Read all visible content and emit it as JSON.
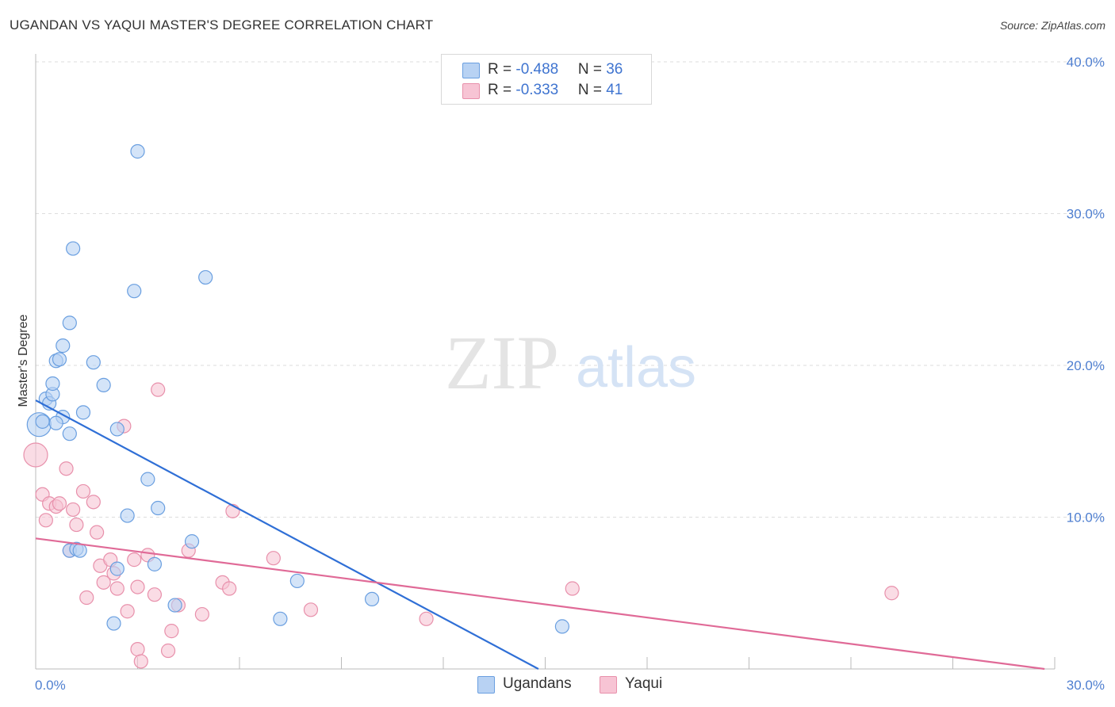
{
  "title": "UGANDAN VS YAQUI MASTER'S DEGREE CORRELATION CHART",
  "source": "Source: ZipAtlas.com",
  "watermark": {
    "zip": "ZIP",
    "atlas": "atlas"
  },
  "legend": {
    "rows": [
      {
        "r_label": "R = ",
        "r_value": "-0.488",
        "n_label": "N = ",
        "n_value": "36"
      },
      {
        "r_label": "R = ",
        "r_value": "-0.333",
        "n_label": "N = ",
        "n_value": "41"
      }
    ]
  },
  "series_labels": {
    "a": "Ugandans",
    "b": "Yaqui"
  },
  "colors": {
    "blue_fill": "#b8d2f3",
    "blue_stroke": "#6a9fe0",
    "blue_line": "#2f6fd6",
    "pink_fill": "#f7c4d4",
    "pink_stroke": "#e890ab",
    "pink_line": "#e06a97",
    "tick_text": "#4f7fd0",
    "grid": "#dddddd"
  },
  "chart_data": {
    "type": "scatter",
    "title": "UGANDAN VS YAQUI MASTER'S DEGREE CORRELATION CHART",
    "xlabel": "",
    "ylabel": "Master's Degree",
    "xlim": [
      0,
      30
    ],
    "ylim": [
      0,
      40
    ],
    "x_tick_labels": [
      "0.0%",
      "30.0%"
    ],
    "y_ticks": [
      10,
      20,
      30,
      40
    ],
    "y_tick_labels": [
      "10.0%",
      "20.0%",
      "30.0%",
      "40.0%"
    ],
    "grid": "horizontal-dashed",
    "legend_position": "top-center",
    "series": [
      {
        "name": "Ugandans",
        "color": "#6a9fe0",
        "r": -0.488,
        "n": 36,
        "trend": {
          "x": [
            0,
            14.8
          ],
          "y": [
            17.7,
            0
          ]
        },
        "points": [
          {
            "x": 0.1,
            "y": 16.1,
            "big": true
          },
          {
            "x": 0.2,
            "y": 16.3
          },
          {
            "x": 0.3,
            "y": 17.8
          },
          {
            "x": 0.4,
            "y": 17.5
          },
          {
            "x": 0.5,
            "y": 18.1
          },
          {
            "x": 0.5,
            "y": 18.8
          },
          {
            "x": 0.6,
            "y": 20.3
          },
          {
            "x": 0.7,
            "y": 20.4
          },
          {
            "x": 0.8,
            "y": 16.6
          },
          {
            "x": 0.8,
            "y": 21.3
          },
          {
            "x": 1.0,
            "y": 7.8
          },
          {
            "x": 1.0,
            "y": 15.5
          },
          {
            "x": 1.0,
            "y": 22.8
          },
          {
            "x": 1.1,
            "y": 27.7
          },
          {
            "x": 1.2,
            "y": 7.9
          },
          {
            "x": 1.3,
            "y": 7.8
          },
          {
            "x": 1.4,
            "y": 16.9
          },
          {
            "x": 1.7,
            "y": 20.2
          },
          {
            "x": 2.0,
            "y": 18.7
          },
          {
            "x": 2.3,
            "y": 3.0
          },
          {
            "x": 2.4,
            "y": 15.8
          },
          {
            "x": 2.4,
            "y": 6.6
          },
          {
            "x": 2.7,
            "y": 10.1
          },
          {
            "x": 2.9,
            "y": 24.9
          },
          {
            "x": 3.0,
            "y": 34.1
          },
          {
            "x": 3.3,
            "y": 12.5
          },
          {
            "x": 3.5,
            "y": 6.9
          },
          {
            "x": 3.6,
            "y": 10.6
          },
          {
            "x": 4.1,
            "y": 4.2
          },
          {
            "x": 4.6,
            "y": 8.4
          },
          {
            "x": 5.0,
            "y": 25.8
          },
          {
            "x": 7.2,
            "y": 3.3
          },
          {
            "x": 7.7,
            "y": 5.8
          },
          {
            "x": 9.9,
            "y": 4.6
          },
          {
            "x": 15.5,
            "y": 2.8
          },
          {
            "x": 0.6,
            "y": 16.2
          }
        ]
      },
      {
        "name": "Yaqui",
        "color": "#e890ab",
        "r": -0.333,
        "n": 41,
        "trend": {
          "x": [
            0,
            29.7
          ],
          "y": [
            8.6,
            0
          ]
        },
        "points": [
          {
            "x": 0.0,
            "y": 14.1,
            "big": true
          },
          {
            "x": 0.2,
            "y": 11.5
          },
          {
            "x": 0.3,
            "y": 9.8
          },
          {
            "x": 0.4,
            "y": 10.9
          },
          {
            "x": 0.6,
            "y": 10.7
          },
          {
            "x": 0.7,
            "y": 10.9
          },
          {
            "x": 0.9,
            "y": 13.2
          },
          {
            "x": 1.0,
            "y": 7.8
          },
          {
            "x": 1.1,
            "y": 10.5
          },
          {
            "x": 1.2,
            "y": 9.5
          },
          {
            "x": 1.4,
            "y": 11.7
          },
          {
            "x": 1.5,
            "y": 4.7
          },
          {
            "x": 1.7,
            "y": 11.0
          },
          {
            "x": 1.8,
            "y": 9.0
          },
          {
            "x": 1.9,
            "y": 6.8
          },
          {
            "x": 2.0,
            "y": 5.7
          },
          {
            "x": 2.2,
            "y": 7.2
          },
          {
            "x": 2.3,
            "y": 6.3
          },
          {
            "x": 2.4,
            "y": 5.3
          },
          {
            "x": 2.6,
            "y": 16.0
          },
          {
            "x": 2.7,
            "y": 3.8
          },
          {
            "x": 2.9,
            "y": 7.2
          },
          {
            "x": 3.0,
            "y": 1.3
          },
          {
            "x": 3.0,
            "y": 5.4
          },
          {
            "x": 3.1,
            "y": 0.5
          },
          {
            "x": 3.3,
            "y": 7.5
          },
          {
            "x": 3.5,
            "y": 4.9
          },
          {
            "x": 3.6,
            "y": 18.4
          },
          {
            "x": 3.9,
            "y": 1.2
          },
          {
            "x": 4.0,
            "y": 2.5
          },
          {
            "x": 4.2,
            "y": 4.2
          },
          {
            "x": 4.5,
            "y": 7.8
          },
          {
            "x": 4.9,
            "y": 3.6
          },
          {
            "x": 5.5,
            "y": 5.7
          },
          {
            "x": 5.7,
            "y": 5.3
          },
          {
            "x": 5.8,
            "y": 10.4
          },
          {
            "x": 7.0,
            "y": 7.3
          },
          {
            "x": 8.1,
            "y": 3.9
          },
          {
            "x": 11.5,
            "y": 3.3
          },
          {
            "x": 15.8,
            "y": 5.3
          },
          {
            "x": 25.2,
            "y": 5.0
          }
        ]
      }
    ]
  }
}
